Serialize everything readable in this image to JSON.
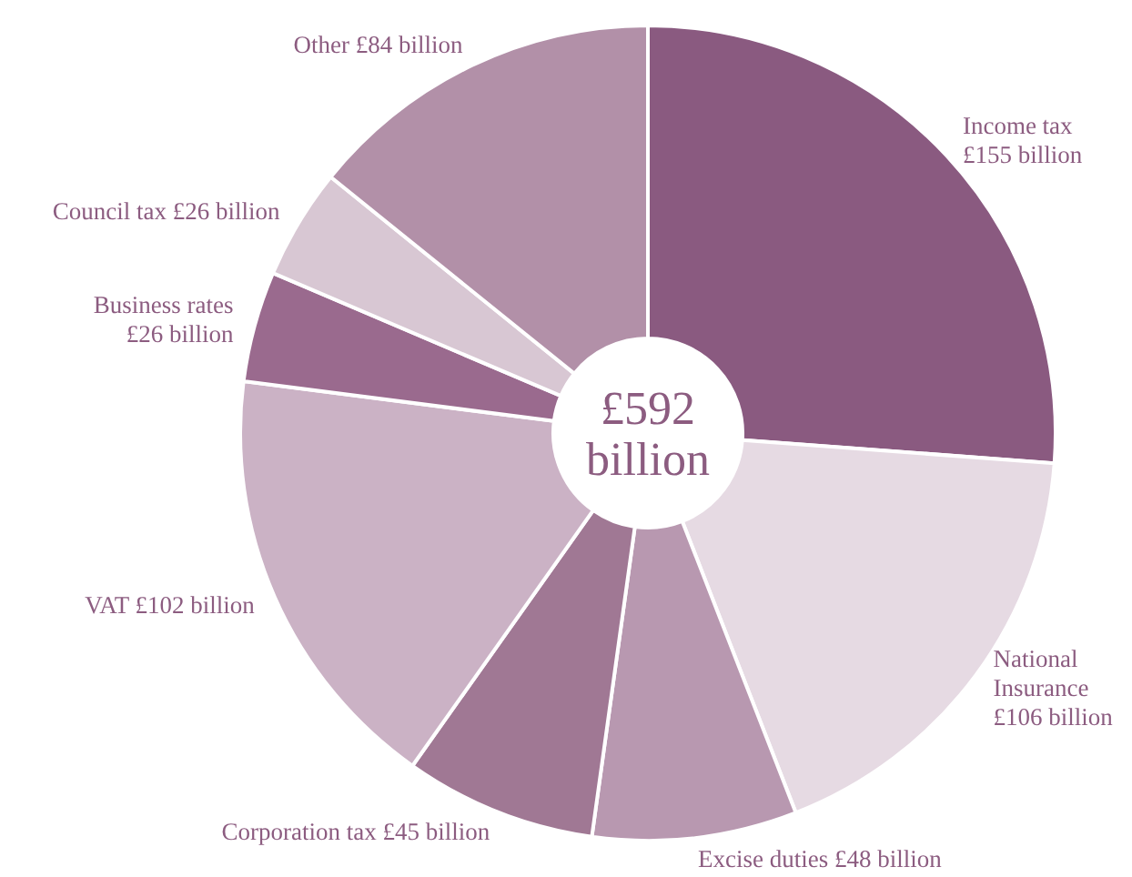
{
  "chart_data": {
    "type": "donut",
    "categories": [
      "Income tax",
      "National Insurance",
      "Excise duties",
      "Corporation tax",
      "VAT",
      "Business rates",
      "Council tax",
      "Other"
    ],
    "values": [
      155,
      106,
      48,
      45,
      102,
      26,
      26,
      84
    ],
    "value_labels": [
      "£155 billion",
      "£106 billion",
      "£48 billion",
      "£45 billion",
      "£102 billion",
      "£26 billion",
      "£26 billion",
      "£84 billion"
    ],
    "colors": [
      "#8a5a80",
      "#e6dae3",
      "#b898b0",
      "#a07894",
      "#cbb2c5",
      "#9a6a8e",
      "#d8c7d3",
      "#b290a8"
    ],
    "annotations": [
      "£592 billion"
    ]
  }
}
